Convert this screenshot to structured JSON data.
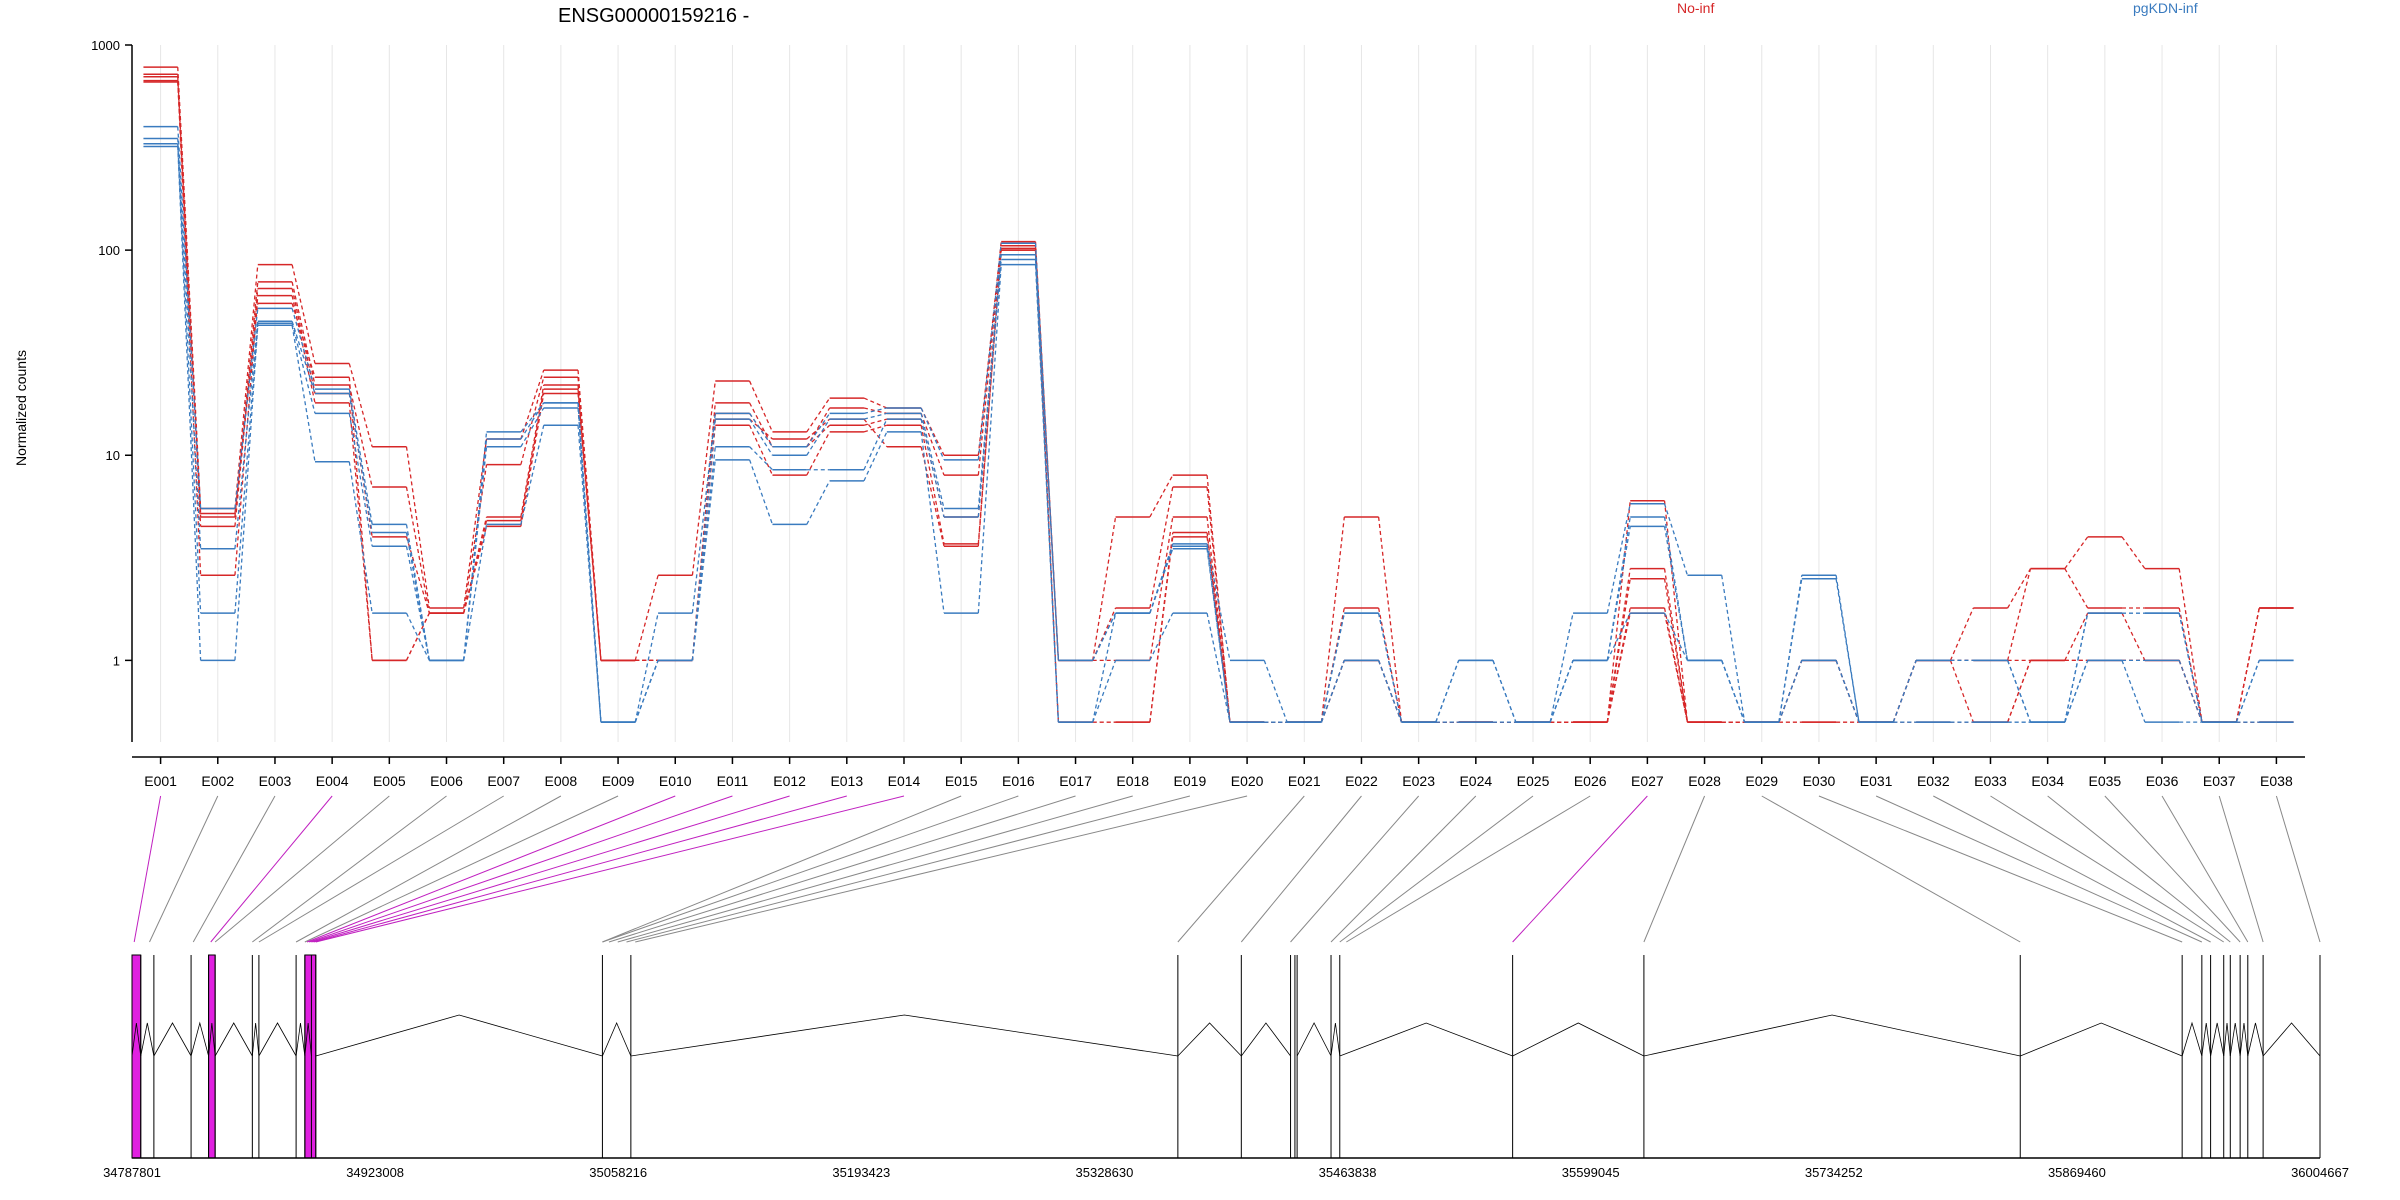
{
  "chart_data": {
    "type": "line",
    "title": "ENSG00000159216 -",
    "ylabel": "Normalized counts",
    "yscale": "log",
    "ylim": [
      0.4,
      1000
    ],
    "y_ticks": [
      1,
      10,
      100,
      1000
    ],
    "y_tick_labels": [
      "1",
      "10",
      "100",
      "1000"
    ],
    "grid": "vertical",
    "legend": [
      {
        "name": "No-inf",
        "color": "#d62728",
        "position": "top"
      },
      {
        "name": "pgKDN-inf",
        "color": "#3a7bbf",
        "position": "top-right"
      }
    ],
    "categories": [
      "E001",
      "E002",
      "E003",
      "E004",
      "E005",
      "E006",
      "E007",
      "E008",
      "E009",
      "E010",
      "E011",
      "E012",
      "E013",
      "E014",
      "E015",
      "E016",
      "E017",
      "E018",
      "E019",
      "E020",
      "E021",
      "E022",
      "E023",
      "E024",
      "E025",
      "E026",
      "E027",
      "E028",
      "E029",
      "E030",
      "E031",
      "E032",
      "E033",
      "E034",
      "E035",
      "E036",
      "E037",
      "E038"
    ],
    "series": [
      {
        "group": "No-inf",
        "color": "#d62728",
        "values": [
          780,
          5.5,
          85,
          28,
          11,
          1.8,
          12,
          26,
          1,
          2.6,
          23,
          13,
          19,
          17,
          10,
          110,
          1,
          5,
          8,
          0.5,
          0.5,
          5,
          0.5,
          0.5,
          0.5,
          0.5,
          6,
          0.5,
          0.5,
          1,
          0.5,
          1,
          1.8,
          2.8,
          4,
          2.8,
          0.5,
          1.8
        ]
      },
      {
        "group": "No-inf",
        "color": "#d62728",
        "values": [
          720,
          5,
          70,
          22,
          7,
          1.7,
          9,
          24,
          1,
          1,
          18,
          11,
          17,
          16,
          8,
          105,
          1,
          1.8,
          7,
          0.5,
          0.5,
          1.8,
          0.5,
          0.5,
          0.5,
          0.5,
          2.8,
          0.5,
          0.5,
          1,
          0.5,
          1,
          1,
          2.8,
          1.8,
          1.8,
          0.5,
          1.8
        ]
      },
      {
        "group": "No-inf",
        "color": "#d62728",
        "values": [
          700,
          4.5,
          65,
          20,
          4,
          1.7,
          5,
          22,
          1,
          1,
          16,
          11,
          14,
          15,
          5,
          100,
          1,
          1,
          5,
          0.5,
          0.5,
          1,
          0.5,
          0.5,
          0.5,
          0.5,
          2.5,
          0.5,
          0.5,
          1,
          0.5,
          1,
          1,
          1,
          1,
          1,
          0.5,
          1.8
        ]
      },
      {
        "group": "No-inf",
        "color": "#d62728",
        "values": [
          670,
          2.6,
          60,
          18,
          1,
          1.7,
          4.8,
          21,
          1,
          1,
          14,
          8,
          13,
          14,
          3.7,
          100,
          0.5,
          0.5,
          4.2,
          0.5,
          0.5,
          1,
          0.5,
          0.5,
          0.5,
          0.5,
          1.8,
          0.5,
          0.5,
          0.5,
          0.5,
          0.5,
          0.5,
          1,
          1,
          1,
          0.5,
          0.5
        ]
      },
      {
        "group": "No-inf",
        "color": "#d62728",
        "values": [
          660,
          5.2,
          55,
          24,
          1,
          1.7,
          4.5,
          20,
          1,
          1,
          15,
          12,
          15,
          11,
          3.6,
          102,
          0.5,
          0.5,
          4,
          0.5,
          0.5,
          1,
          0.5,
          0.5,
          0.5,
          0.5,
          1.7,
          0.5,
          0.5,
          0.5,
          0.5,
          1,
          0.5,
          1,
          1.7,
          1,
          0.5,
          0.5
        ]
      },
      {
        "group": "pgKDN-inf",
        "color": "#3a7bbf",
        "values": [
          400,
          5.5,
          52,
          21,
          4.6,
          1,
          13,
          18,
          0.5,
          1.7,
          16,
          11,
          16,
          17,
          9.5,
          108,
          1,
          1.7,
          3.7,
          1,
          0.5,
          1.7,
          0.5,
          1,
          0.5,
          1.7,
          5.8,
          2.6,
          0.5,
          2.6,
          0.5,
          1,
          1,
          0.5,
          1.7,
          1.7,
          0.5,
          1
        ]
      },
      {
        "group": "pgKDN-inf",
        "color": "#3a7bbf",
        "values": [
          350,
          3.5,
          45,
          20,
          4.2,
          1,
          12,
          18,
          0.5,
          1,
          15,
          10,
          15,
          16,
          5.5,
          95,
          1,
          1.7,
          3.6,
          0.5,
          0.5,
          1.7,
          0.5,
          1,
          0.5,
          1,
          5,
          1,
          0.5,
          2.5,
          0.5,
          1,
          1,
          0.5,
          1.7,
          1.7,
          0.5,
          1
        ]
      },
      {
        "group": "pgKDN-inf",
        "color": "#3a7bbf",
        "values": [
          330,
          1.7,
          44,
          16,
          3.6,
          1,
          11,
          17,
          0.5,
          1,
          11,
          8.5,
          8.5,
          15,
          5,
          90,
          0.5,
          1.7,
          3.5,
          0.5,
          0.5,
          1,
          0.5,
          0.5,
          0.5,
          1,
          4.5,
          1,
          0.5,
          1,
          0.5,
          0.5,
          0.5,
          0.5,
          1,
          1,
          0.5,
          0.5
        ]
      },
      {
        "group": "pgKDN-inf",
        "color": "#3a7bbf",
        "values": [
          320,
          1,
          43,
          9.3,
          1.7,
          1,
          4.6,
          14,
          0.5,
          1,
          9.5,
          4.6,
          7.5,
          13,
          1.7,
          85,
          0.5,
          1,
          1.7,
          0.5,
          0.5,
          1,
          0.5,
          0.5,
          0.5,
          1,
          1.7,
          1,
          0.5,
          1,
          0.5,
          0.5,
          0.5,
          0.5,
          1,
          0.5,
          0.5,
          0.5
        ]
      }
    ],
    "genomic_axis": {
      "tick_labels": [
        "34787801",
        "34923008",
        "35058216",
        "35193423",
        "35328630",
        "35463838",
        "35599045",
        "35734252",
        "35869460",
        "36004667"
      ],
      "min": 34787801,
      "max": 36004667,
      "highlight_color": "#e020e0"
    }
  }
}
